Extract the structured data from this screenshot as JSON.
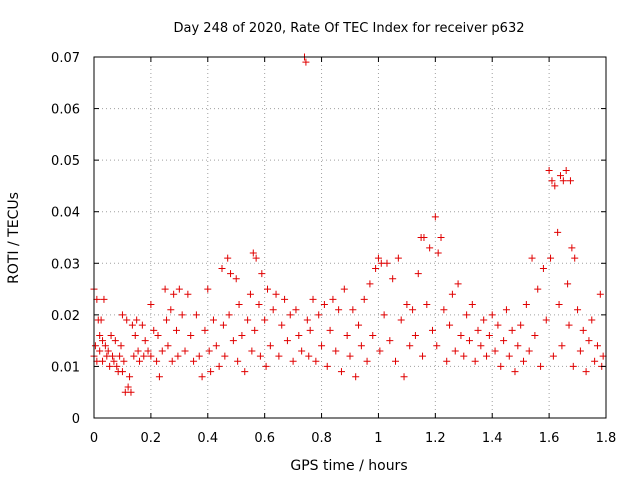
{
  "chart_data": {
    "type": "scatter",
    "title": "Day 248 of 2020, Rate Of TEC Index for receiver p632",
    "xlabel": "GPS time / hours",
    "ylabel": "ROTI / TECUs",
    "xlim": [
      0,
      1.8
    ],
    "ylim": [
      0,
      0.07
    ],
    "x_ticks": [
      "0",
      "0.2",
      "0.4",
      "0.6",
      "0.8",
      "1",
      "1.2",
      "1.4",
      "1.6",
      "1.8"
    ],
    "y_ticks": [
      "0",
      "0.01",
      "0.02",
      "0.03",
      "0.04",
      "0.05",
      "0.06",
      "0.07"
    ],
    "grid": true,
    "marker": "+",
    "marker_color": "#e00000",
    "series": [
      {
        "points": [
          [
            0.0,
            0.025
          ],
          [
            0.0,
            0.012
          ],
          [
            0.005,
            0.014
          ],
          [
            0.01,
            0.023
          ],
          [
            0.01,
            0.011
          ],
          [
            0.015,
            0.019
          ],
          [
            0.02,
            0.016
          ],
          [
            0.02,
            0.013
          ],
          [
            0.025,
            0.019
          ],
          [
            0.03,
            0.011
          ],
          [
            0.03,
            0.015
          ],
          [
            0.035,
            0.023
          ],
          [
            0.04,
            0.014
          ],
          [
            0.045,
            0.012
          ],
          [
            0.05,
            0.013
          ],
          [
            0.055,
            0.01
          ],
          [
            0.06,
            0.016
          ],
          [
            0.065,
            0.012
          ],
          [
            0.07,
            0.011
          ],
          [
            0.075,
            0.015
          ],
          [
            0.08,
            0.01
          ],
          [
            0.085,
            0.009
          ],
          [
            0.09,
            0.012
          ],
          [
            0.095,
            0.014
          ],
          [
            0.1,
            0.02
          ],
          [
            0.1,
            0.009
          ],
          [
            0.105,
            0.011
          ],
          [
            0.11,
            0.005
          ],
          [
            0.115,
            0.019
          ],
          [
            0.12,
            0.006
          ],
          [
            0.125,
            0.008
          ],
          [
            0.13,
            0.005
          ],
          [
            0.135,
            0.018
          ],
          [
            0.14,
            0.012
          ],
          [
            0.145,
            0.016
          ],
          [
            0.15,
            0.019
          ],
          [
            0.155,
            0.013
          ],
          [
            0.16,
            0.011
          ],
          [
            0.17,
            0.018
          ],
          [
            0.175,
            0.012
          ],
          [
            0.18,
            0.015
          ],
          [
            0.19,
            0.013
          ],
          [
            0.2,
            0.022
          ],
          [
            0.2,
            0.012
          ],
          [
            0.21,
            0.017
          ],
          [
            0.22,
            0.011
          ],
          [
            0.225,
            0.016
          ],
          [
            0.23,
            0.008
          ],
          [
            0.24,
            0.013
          ],
          [
            0.25,
            0.025
          ],
          [
            0.255,
            0.019
          ],
          [
            0.26,
            0.014
          ],
          [
            0.27,
            0.021
          ],
          [
            0.275,
            0.011
          ],
          [
            0.28,
            0.024
          ],
          [
            0.29,
            0.017
          ],
          [
            0.295,
            0.012
          ],
          [
            0.3,
            0.025
          ],
          [
            0.31,
            0.02
          ],
          [
            0.32,
            0.013
          ],
          [
            0.33,
            0.024
          ],
          [
            0.34,
            0.016
          ],
          [
            0.35,
            0.011
          ],
          [
            0.36,
            0.02
          ],
          [
            0.37,
            0.012
          ],
          [
            0.38,
            0.008
          ],
          [
            0.39,
            0.017
          ],
          [
            0.4,
            0.025
          ],
          [
            0.405,
            0.013
          ],
          [
            0.41,
            0.009
          ],
          [
            0.42,
            0.019
          ],
          [
            0.43,
            0.014
          ],
          [
            0.44,
            0.01
          ],
          [
            0.45,
            0.029
          ],
          [
            0.455,
            0.018
          ],
          [
            0.46,
            0.012
          ],
          [
            0.47,
            0.031
          ],
          [
            0.475,
            0.02
          ],
          [
            0.48,
            0.028
          ],
          [
            0.49,
            0.015
          ],
          [
            0.5,
            0.027
          ],
          [
            0.505,
            0.011
          ],
          [
            0.51,
            0.022
          ],
          [
            0.52,
            0.016
          ],
          [
            0.53,
            0.009
          ],
          [
            0.54,
            0.019
          ],
          [
            0.55,
            0.024
          ],
          [
            0.555,
            0.013
          ],
          [
            0.56,
            0.032
          ],
          [
            0.565,
            0.017
          ],
          [
            0.57,
            0.031
          ],
          [
            0.58,
            0.022
          ],
          [
            0.585,
            0.012
          ],
          [
            0.59,
            0.028
          ],
          [
            0.6,
            0.019
          ],
          [
            0.605,
            0.01
          ],
          [
            0.61,
            0.025
          ],
          [
            0.62,
            0.014
          ],
          [
            0.63,
            0.021
          ],
          [
            0.64,
            0.024
          ],
          [
            0.65,
            0.012
          ],
          [
            0.66,
            0.018
          ],
          [
            0.67,
            0.023
          ],
          [
            0.68,
            0.015
          ],
          [
            0.69,
            0.02
          ],
          [
            0.7,
            0.011
          ],
          [
            0.71,
            0.021
          ],
          [
            0.72,
            0.016
          ],
          [
            0.73,
            0.013
          ],
          [
            0.74,
            0.07
          ],
          [
            0.745,
            0.069
          ],
          [
            0.75,
            0.019
          ],
          [
            0.755,
            0.012
          ],
          [
            0.76,
            0.017
          ],
          [
            0.77,
            0.023
          ],
          [
            0.78,
            0.011
          ],
          [
            0.79,
            0.02
          ],
          [
            0.8,
            0.014
          ],
          [
            0.81,
            0.022
          ],
          [
            0.82,
            0.01
          ],
          [
            0.83,
            0.017
          ],
          [
            0.84,
            0.023
          ],
          [
            0.85,
            0.013
          ],
          [
            0.86,
            0.021
          ],
          [
            0.87,
            0.009
          ],
          [
            0.88,
            0.025
          ],
          [
            0.89,
            0.016
          ],
          [
            0.9,
            0.012
          ],
          [
            0.91,
            0.021
          ],
          [
            0.92,
            0.008
          ],
          [
            0.93,
            0.018
          ],
          [
            0.94,
            0.014
          ],
          [
            0.95,
            0.023
          ],
          [
            0.96,
            0.011
          ],
          [
            0.97,
            0.026
          ],
          [
            0.98,
            0.016
          ],
          [
            0.99,
            0.029
          ],
          [
            1.0,
            0.031
          ],
          [
            1.005,
            0.013
          ],
          [
            1.01,
            0.03
          ],
          [
            1.02,
            0.02
          ],
          [
            1.03,
            0.03
          ],
          [
            1.04,
            0.015
          ],
          [
            1.05,
            0.027
          ],
          [
            1.06,
            0.011
          ],
          [
            1.07,
            0.031
          ],
          [
            1.08,
            0.019
          ],
          [
            1.09,
            0.008
          ],
          [
            1.1,
            0.022
          ],
          [
            1.11,
            0.014
          ],
          [
            1.12,
            0.021
          ],
          [
            1.13,
            0.016
          ],
          [
            1.14,
            0.028
          ],
          [
            1.15,
            0.035
          ],
          [
            1.155,
            0.012
          ],
          [
            1.16,
            0.035
          ],
          [
            1.17,
            0.022
          ],
          [
            1.18,
            0.033
          ],
          [
            1.19,
            0.017
          ],
          [
            1.2,
            0.039
          ],
          [
            1.205,
            0.014
          ],
          [
            1.21,
            0.032
          ],
          [
            1.22,
            0.035
          ],
          [
            1.23,
            0.021
          ],
          [
            1.24,
            0.011
          ],
          [
            1.25,
            0.018
          ],
          [
            1.26,
            0.024
          ],
          [
            1.27,
            0.013
          ],
          [
            1.28,
            0.026
          ],
          [
            1.29,
            0.016
          ],
          [
            1.3,
            0.012
          ],
          [
            1.31,
            0.02
          ],
          [
            1.32,
            0.015
          ],
          [
            1.33,
            0.022
          ],
          [
            1.34,
            0.011
          ],
          [
            1.35,
            0.017
          ],
          [
            1.36,
            0.014
          ],
          [
            1.37,
            0.019
          ],
          [
            1.38,
            0.012
          ],
          [
            1.39,
            0.016
          ],
          [
            1.4,
            0.02
          ],
          [
            1.41,
            0.013
          ],
          [
            1.42,
            0.018
          ],
          [
            1.43,
            0.01
          ],
          [
            1.44,
            0.015
          ],
          [
            1.45,
            0.021
          ],
          [
            1.46,
            0.012
          ],
          [
            1.47,
            0.017
          ],
          [
            1.48,
            0.009
          ],
          [
            1.49,
            0.014
          ],
          [
            1.5,
            0.018
          ],
          [
            1.51,
            0.011
          ],
          [
            1.52,
            0.022
          ],
          [
            1.53,
            0.013
          ],
          [
            1.54,
            0.031
          ],
          [
            1.55,
            0.016
          ],
          [
            1.56,
            0.025
          ],
          [
            1.57,
            0.01
          ],
          [
            1.58,
            0.029
          ],
          [
            1.59,
            0.019
          ],
          [
            1.6,
            0.048
          ],
          [
            1.605,
            0.031
          ],
          [
            1.61,
            0.046
          ],
          [
            1.615,
            0.012
          ],
          [
            1.62,
            0.045
          ],
          [
            1.63,
            0.036
          ],
          [
            1.635,
            0.022
          ],
          [
            1.64,
            0.047
          ],
          [
            1.645,
            0.014
          ],
          [
            1.65,
            0.046
          ],
          [
            1.66,
            0.048
          ],
          [
            1.665,
            0.026
          ],
          [
            1.67,
            0.018
          ],
          [
            1.675,
            0.046
          ],
          [
            1.68,
            0.033
          ],
          [
            1.685,
            0.01
          ],
          [
            1.69,
            0.031
          ],
          [
            1.7,
            0.021
          ],
          [
            1.71,
            0.013
          ],
          [
            1.72,
            0.017
          ],
          [
            1.73,
            0.009
          ],
          [
            1.74,
            0.015
          ],
          [
            1.75,
            0.019
          ],
          [
            1.76,
            0.011
          ],
          [
            1.77,
            0.014
          ],
          [
            1.78,
            0.024
          ],
          [
            1.785,
            0.01
          ],
          [
            1.79,
            0.012
          ]
        ]
      }
    ]
  }
}
